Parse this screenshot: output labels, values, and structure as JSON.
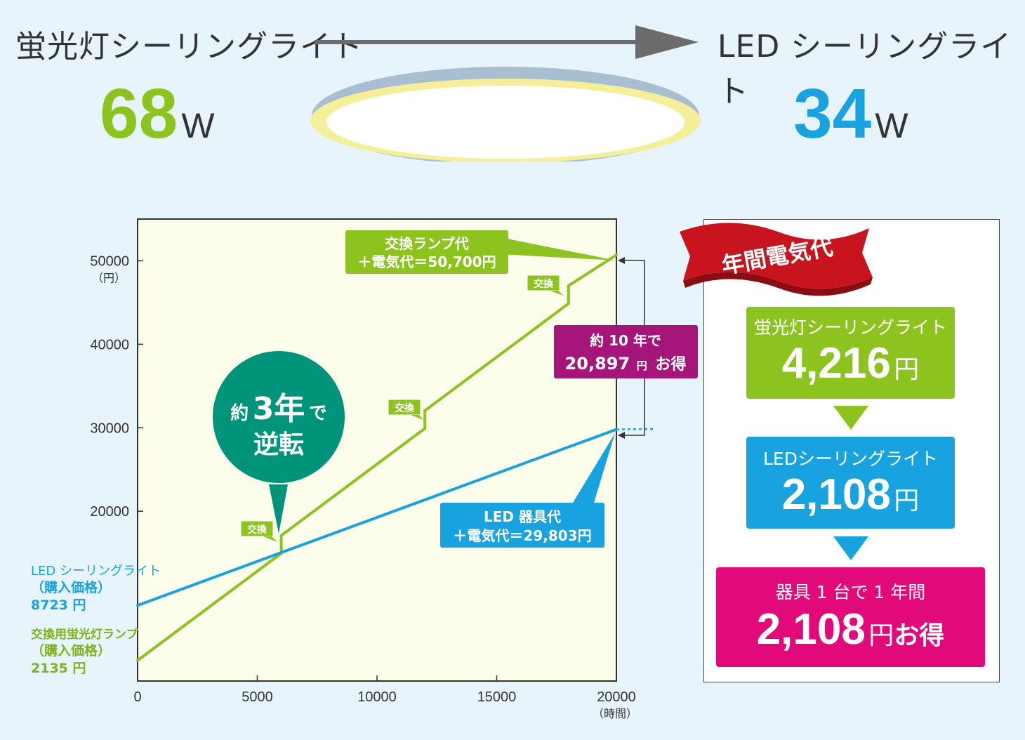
{
  "header": {
    "left_title": "蛍光灯シーリングライト",
    "right_title": "LED シーリングライト",
    "left_watt": "68",
    "right_watt": "34",
    "watt_unit": "W"
  },
  "chart_data": {
    "type": "line",
    "x": [
      0,
      5000,
      10000,
      15000,
      20000
    ],
    "xlim": [
      0,
      20000
    ],
    "ylim": [
      0,
      55000
    ],
    "x_ticks": [
      "0",
      "5000",
      "10000",
      "15000",
      "20000"
    ],
    "y_ticks": [
      "20000",
      "30000",
      "40000",
      "50000"
    ],
    "x_unit": "（時間）",
    "y_unit": "（円）",
    "series": [
      {
        "color": "#8cc31e",
        "points": [
          [
            0,
            2135
          ],
          [
            6000,
            14960
          ],
          [
            6000,
            17095
          ],
          [
            12000,
            29920
          ],
          [
            12000,
            32055
          ],
          [
            18000,
            44880
          ],
          [
            18000,
            47015
          ],
          [
            20000,
            50700
          ]
        ]
      },
      {
        "color": "#18a3e0",
        "points": [
          [
            0,
            8723
          ],
          [
            20000,
            29803
          ]
        ]
      }
    ],
    "annotations": {
      "green_label_line1": "交換ランプ代",
      "green_label_line2": "＋電気代＝50,700円",
      "blue_label_line1": "LED 器具代",
      "blue_label_line2": "＋電気代＝29,803円",
      "swap_tag": "交換",
      "savings_line1": "約 10 年で",
      "savings_amount": "20,897",
      "savings_unit": "円",
      "savings_suffix": "お得",
      "bubble_line1_a": "約",
      "bubble_line1_b": "3年",
      "bubble_line1_c": "で",
      "bubble_line2": "逆転"
    },
    "left_notes": {
      "led_title": "LED シーリングライト",
      "led_sub": "（購入価格）",
      "led_price": "8723 円",
      "fl_title": "交換用蛍光灯ランプ",
      "fl_sub": "（購入価格）",
      "fl_price": "2135 円"
    }
  },
  "annual": {
    "ribbon": "年間電気代",
    "fl_label": "蛍光灯シーリングライト",
    "fl_value": "4,216",
    "led_label": "LEDシーリングライト",
    "led_value": "2,108",
    "save_label": "器具 1 台で 1 年間",
    "save_value": "2,108",
    "yen": "円",
    "otoku": "お得"
  }
}
